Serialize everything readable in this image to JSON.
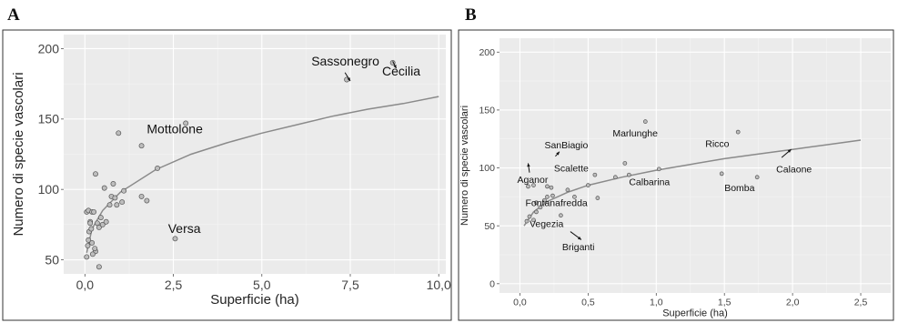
{
  "chart_data": [
    {
      "panel": "A",
      "type": "scatter",
      "xlabel": "Superficie (ha)",
      "ylabel": "Numero di specie vascolari",
      "xlim": [
        -0.6,
        10.2
      ],
      "ylim": [
        40,
        210
      ],
      "xticks": [
        0,
        2.5,
        5,
        7.5,
        10
      ],
      "xtick_labels": [
        "0,0",
        "2,5",
        "5,0",
        "7,5",
        "10,0"
      ],
      "yticks": [
        50,
        100,
        150,
        200
      ],
      "ytick_labels": [
        "50",
        "100",
        "150",
        "200"
      ],
      "grid": true,
      "points": [
        {
          "x": 0.05,
          "y": 52
        },
        {
          "x": 0.08,
          "y": 60
        },
        {
          "x": 0.1,
          "y": 64
        },
        {
          "x": 0.12,
          "y": 70
        },
        {
          "x": 0.15,
          "y": 77
        },
        {
          "x": 0.05,
          "y": 84
        },
        {
          "x": 0.1,
          "y": 85
        },
        {
          "x": 0.2,
          "y": 84
        },
        {
          "x": 0.25,
          "y": 84
        },
        {
          "x": 0.15,
          "y": 76
        },
        {
          "x": 0.18,
          "y": 72
        },
        {
          "x": 0.3,
          "y": 56
        },
        {
          "x": 0.28,
          "y": 58
        },
        {
          "x": 0.35,
          "y": 76
        },
        {
          "x": 0.4,
          "y": 73
        },
        {
          "x": 0.45,
          "y": 80
        },
        {
          "x": 0.2,
          "y": 62
        },
        {
          "x": 0.22,
          "y": 54
        },
        {
          "x": 0.4,
          "y": 45
        },
        {
          "x": 0.5,
          "y": 75
        },
        {
          "x": 0.55,
          "y": 101
        },
        {
          "x": 0.6,
          "y": 77
        },
        {
          "x": 0.3,
          "y": 111
        },
        {
          "x": 0.7,
          "y": 89
        },
        {
          "x": 0.75,
          "y": 95
        },
        {
          "x": 0.8,
          "y": 104
        },
        {
          "x": 0.85,
          "y": 94
        },
        {
          "x": 0.9,
          "y": 89
        },
        {
          "x": 0.95,
          "y": 140
        },
        {
          "x": 1.05,
          "y": 91
        },
        {
          "x": 1.1,
          "y": 99
        },
        {
          "x": 1.6,
          "y": 131
        },
        {
          "x": 1.6,
          "y": 95
        },
        {
          "x": 1.75,
          "y": 92
        },
        {
          "x": 2.05,
          "y": 115
        },
        {
          "x": 2.55,
          "y": 65
        },
        {
          "x": 2.85,
          "y": 147
        },
        {
          "x": 7.4,
          "y": 178
        },
        {
          "x": 8.7,
          "y": 190
        }
      ],
      "fit": [
        {
          "x": 0.05,
          "y": 55
        },
        {
          "x": 0.2,
          "y": 72
        },
        {
          "x": 0.5,
          "y": 85
        },
        {
          "x": 1,
          "y": 98
        },
        {
          "x": 2,
          "y": 114
        },
        {
          "x": 3,
          "y": 125
        },
        {
          "x": 4,
          "y": 133
        },
        {
          "x": 5,
          "y": 140
        },
        {
          "x": 6,
          "y": 146
        },
        {
          "x": 7,
          "y": 152
        },
        {
          "x": 8,
          "y": 157
        },
        {
          "x": 9,
          "y": 161
        },
        {
          "x": 10,
          "y": 166
        }
      ],
      "annotations": [
        {
          "text": "Mottolone",
          "x": 1.75,
          "y": 140
        },
        {
          "text": "Versa",
          "x": 2.35,
          "y": 69
        },
        {
          "text": "Sassonegro",
          "x": 6.4,
          "y": 188
        },
        {
          "text": "Cecilia",
          "x": 8.4,
          "y": 181
        }
      ],
      "arrows": [
        {
          "from": [
            7.35,
            183
          ],
          "to": [
            7.5,
            177
          ]
        },
        {
          "from": [
            8.7,
            191
          ],
          "to": [
            8.8,
            186
          ]
        }
      ]
    },
    {
      "panel": "B",
      "type": "scatter",
      "xlabel": "Superficie (ha)",
      "ylabel": "Numero di specie vascolari",
      "xlim": [
        -0.15,
        2.72
      ],
      "ylim": [
        -8,
        212
      ],
      "xticks": [
        0,
        0.5,
        1,
        1.5,
        2,
        2.5
      ],
      "xtick_labels": [
        "0,0",
        "0,5",
        "1,0",
        "1,5",
        "2,0",
        "2,5"
      ],
      "yticks": [
        0,
        50,
        100,
        150,
        200
      ],
      "ytick_labels": [
        "0",
        "50",
        "100",
        "150",
        "200"
      ],
      "grid": true,
      "points": [
        {
          "x": 0.05,
          "y": 54
        },
        {
          "x": 0.07,
          "y": 58
        },
        {
          "x": 0.1,
          "y": 55
        },
        {
          "x": 0.12,
          "y": 62
        },
        {
          "x": 0.15,
          "y": 66
        },
        {
          "x": 0.12,
          "y": 70
        },
        {
          "x": 0.18,
          "y": 72
        },
        {
          "x": 0.2,
          "y": 75
        },
        {
          "x": 0.24,
          "y": 76
        },
        {
          "x": 0.2,
          "y": 84
        },
        {
          "x": 0.23,
          "y": 83
        },
        {
          "x": 0.06,
          "y": 84
        },
        {
          "x": 0.1,
          "y": 85
        },
        {
          "x": 0.3,
          "y": 59
        },
        {
          "x": 0.35,
          "y": 81
        },
        {
          "x": 0.4,
          "y": 75
        },
        {
          "x": 0.5,
          "y": 85
        },
        {
          "x": 0.55,
          "y": 94
        },
        {
          "x": 0.57,
          "y": 74
        },
        {
          "x": 0.7,
          "y": 92
        },
        {
          "x": 0.77,
          "y": 104
        },
        {
          "x": 0.8,
          "y": 94
        },
        {
          "x": 1.02,
          "y": 99
        },
        {
          "x": 0.92,
          "y": 140
        },
        {
          "x": 1.48,
          "y": 95
        },
        {
          "x": 1.6,
          "y": 131
        },
        {
          "x": 1.74,
          "y": 92
        }
      ],
      "fit": [
        {
          "x": 0.03,
          "y": 50
        },
        {
          "x": 0.1,
          "y": 62
        },
        {
          "x": 0.2,
          "y": 71
        },
        {
          "x": 0.35,
          "y": 79
        },
        {
          "x": 0.5,
          "y": 85
        },
        {
          "x": 0.75,
          "y": 92
        },
        {
          "x": 1,
          "y": 98
        },
        {
          "x": 1.25,
          "y": 103
        },
        {
          "x": 1.5,
          "y": 108
        },
        {
          "x": 1.75,
          "y": 112
        },
        {
          "x": 2,
          "y": 116
        },
        {
          "x": 2.25,
          "y": 120
        },
        {
          "x": 2.5,
          "y": 124
        }
      ],
      "annotations": [
        {
          "text": "SanBiagio",
          "x": 0.18,
          "y": 117
        },
        {
          "text": "Scalette",
          "x": 0.25,
          "y": 97
        },
        {
          "text": "Aganor",
          "x": -0.02,
          "y": 87
        },
        {
          "text": "Marlunghe",
          "x": 0.68,
          "y": 127
        },
        {
          "text": "Ricco",
          "x": 1.36,
          "y": 118
        },
        {
          "text": "Calbarina",
          "x": 0.8,
          "y": 85
        },
        {
          "text": "Calaone",
          "x": 1.88,
          "y": 96
        },
        {
          "text": "Bomba",
          "x": 1.5,
          "y": 80
        },
        {
          "text": "Fontanafredda",
          "x": 0.04,
          "y": 67
        },
        {
          "text": "Vegezia",
          "x": 0.07,
          "y": 49
        },
        {
          "text": "Briganti",
          "x": 0.31,
          "y": 29
        }
      ],
      "arrows": [
        {
          "from": [
            0.07,
            96
          ],
          "to": [
            0.06,
            104
          ]
        },
        {
          "from": [
            0.26,
            110
          ],
          "to": [
            0.29,
            114
          ]
        },
        {
          "from": [
            1.92,
            109
          ],
          "to": [
            1.99,
            116
          ]
        },
        {
          "from": [
            0.37,
            45
          ],
          "to": [
            0.45,
            38
          ]
        }
      ]
    }
  ]
}
